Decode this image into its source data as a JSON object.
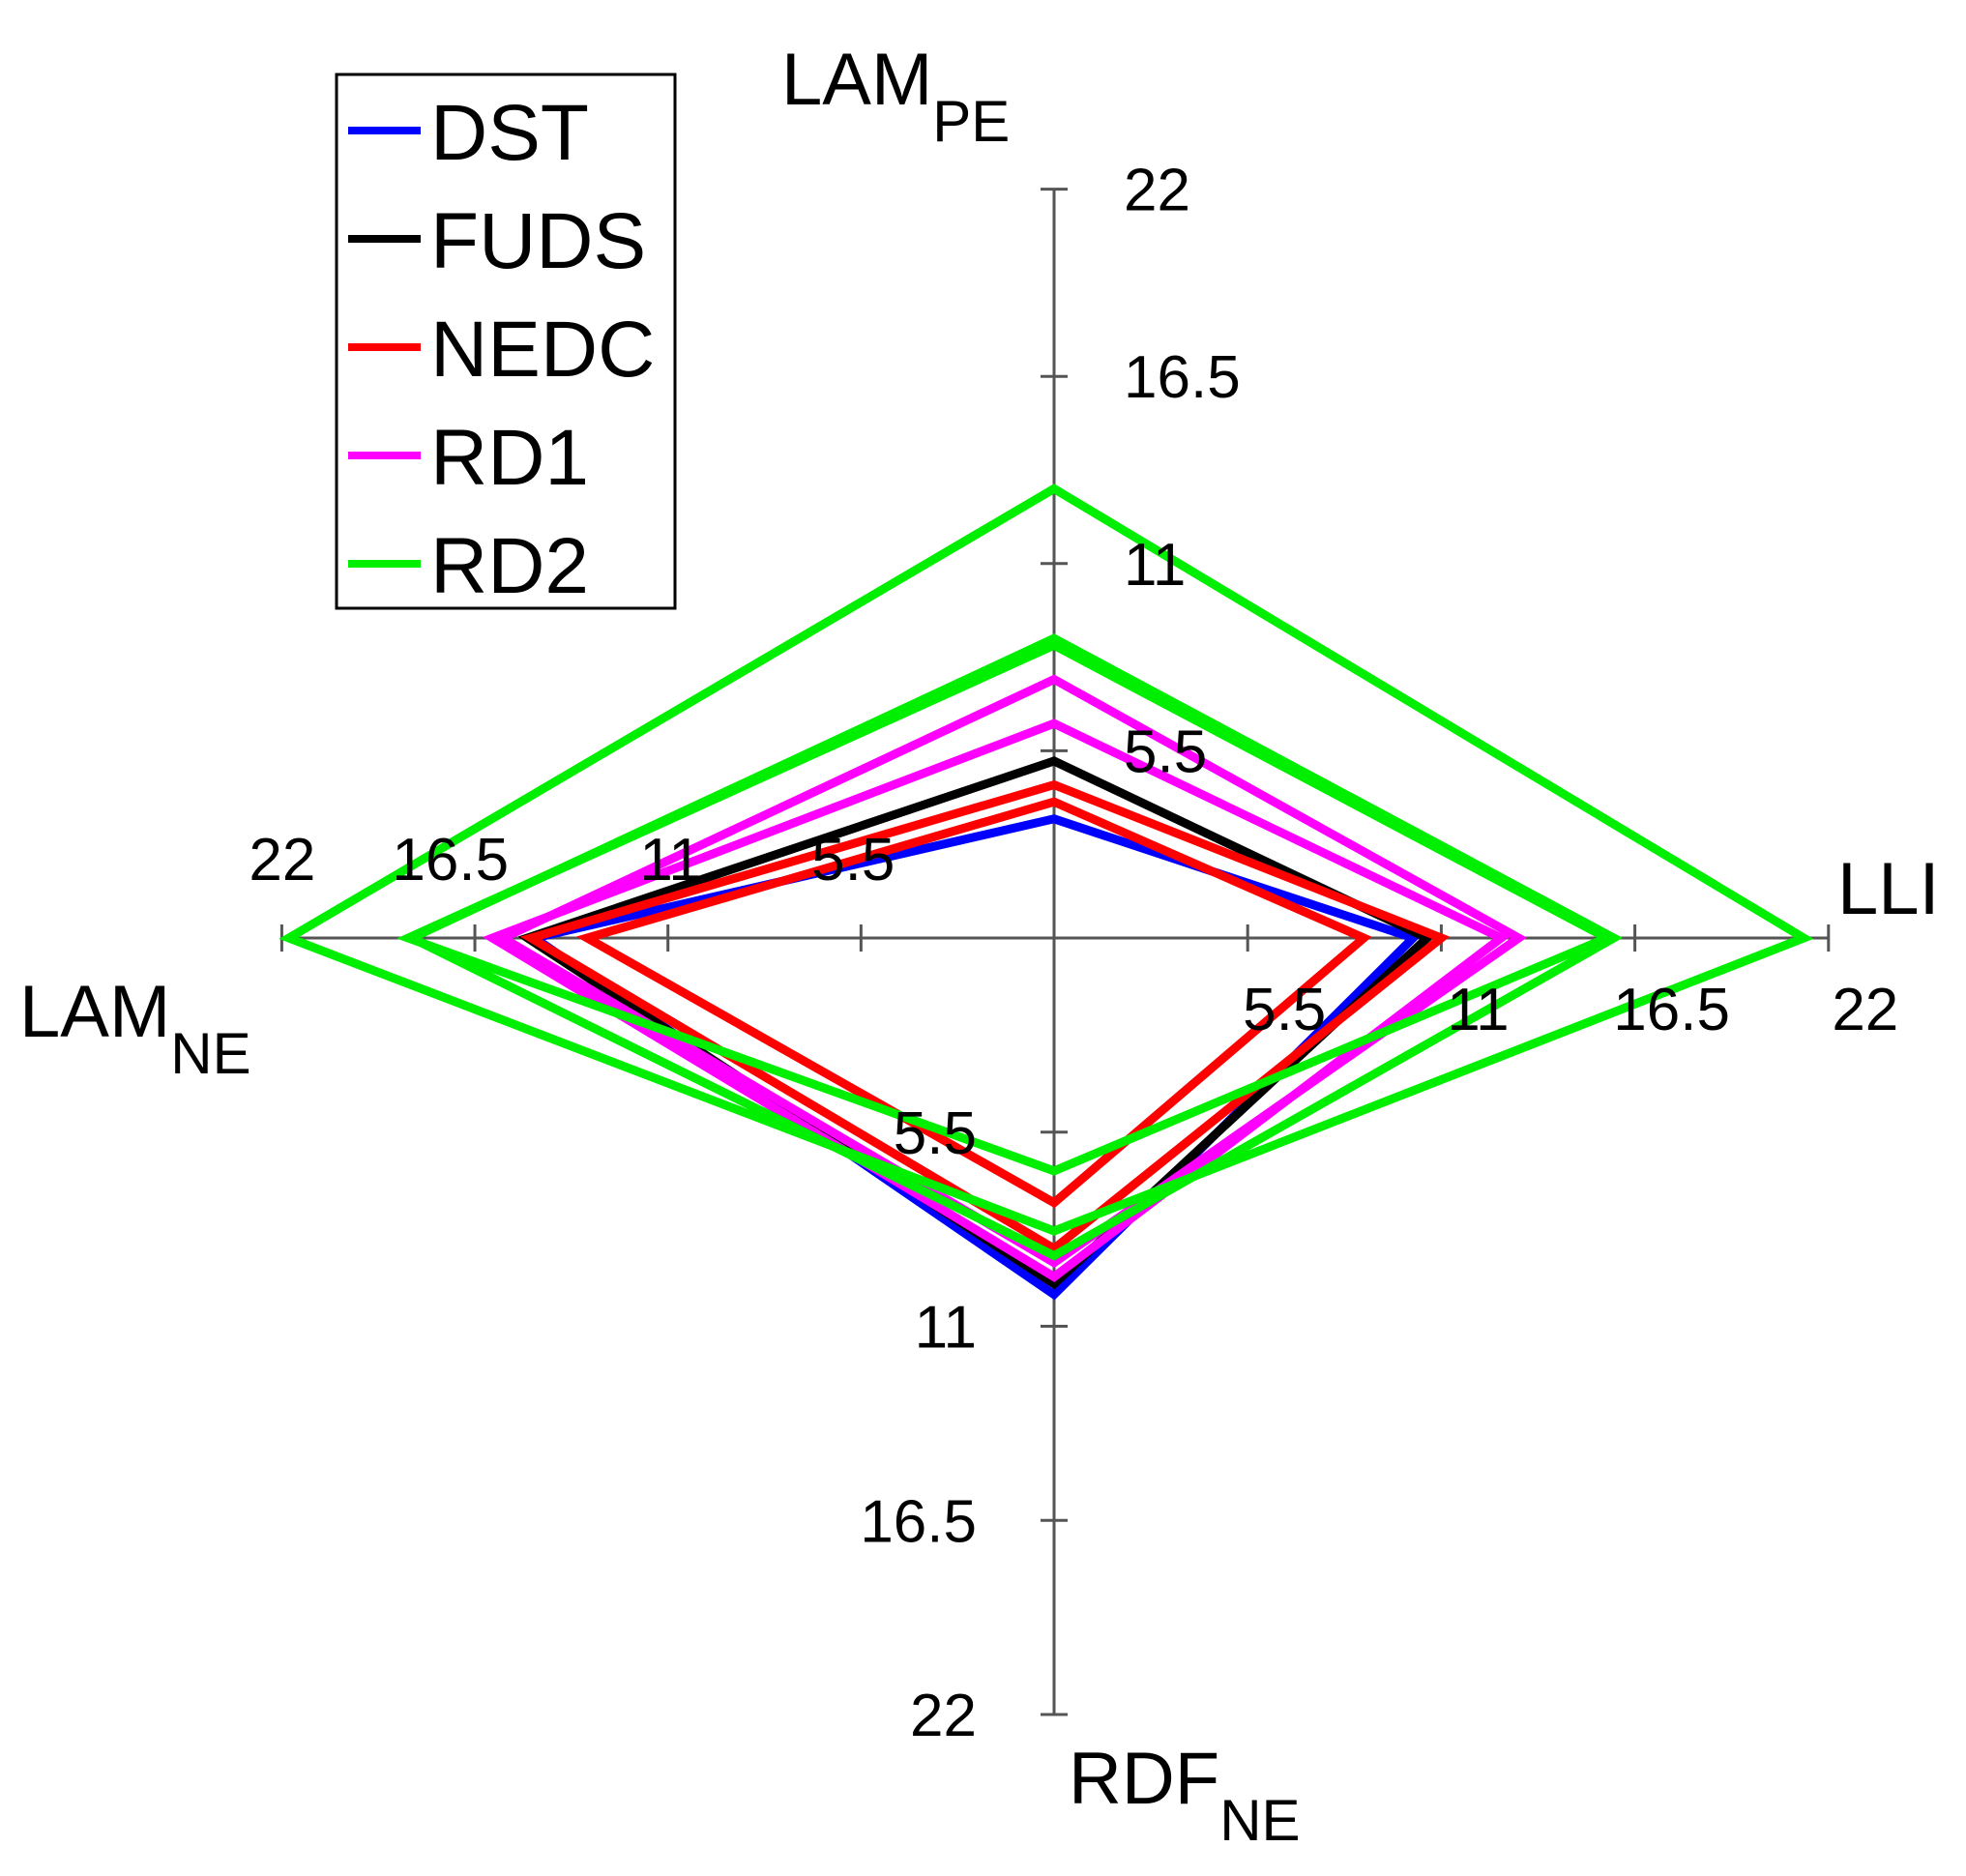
{
  "chart_data": {
    "type": "radar",
    "axes": [
      {
        "id": "lam_pe",
        "label": "LAM",
        "subscript": "PE",
        "direction": "up"
      },
      {
        "id": "lli",
        "label": "LLI",
        "subscript": "",
        "direction": "right"
      },
      {
        "id": "rdf_ne",
        "label": "RDF",
        "subscript": "NE",
        "direction": "down"
      },
      {
        "id": "lam_ne",
        "label": "LAM",
        "subscript": "NE",
        "direction": "left"
      }
    ],
    "range": [
      0,
      22
    ],
    "ticks": [
      5.5,
      11,
      16.5,
      22
    ],
    "tick_labels": {
      "lam_pe": [
        "5.5",
        "11",
        "16.5",
        "22"
      ],
      "lli": [
        "5.5",
        "11",
        "16.5",
        "22"
      ],
      "rdf_ne": [
        "5.5",
        "11",
        "16.5",
        "22"
      ],
      "lam_ne": [
        "5.5",
        "11",
        "16.5",
        "22"
      ]
    },
    "legend": {
      "position": "top-left"
    },
    "series": [
      {
        "name": "DST",
        "color": "#0000ff",
        "polygons": [
          {
            "lam_pe": 3.5,
            "lli": 10.2,
            "rdf_ne": 10.1,
            "lam_ne": 14.8
          }
        ]
      },
      {
        "name": "FUDS",
        "color": "#000000",
        "polygons": [
          {
            "lam_pe": 5.2,
            "lli": 10.6,
            "rdf_ne": 9.8,
            "lam_ne": 15.0
          }
        ]
      },
      {
        "name": "NEDC",
        "color": "#ff0000",
        "polygons": [
          {
            "lam_pe": 4.0,
            "lli": 8.8,
            "rdf_ne": 7.5,
            "lam_ne": 13.3
          },
          {
            "lam_pe": 4.5,
            "lli": 11.0,
            "rdf_ne": 8.8,
            "lam_ne": 14.9
          }
        ]
      },
      {
        "name": "RD1",
        "color": "#ff00ff",
        "polygons": [
          {
            "lam_pe": 6.3,
            "lli": 12.7,
            "rdf_ne": 9.6,
            "lam_ne": 16.0
          },
          {
            "lam_pe": 7.6,
            "lli": 13.2,
            "rdf_ne": 9.2,
            "lam_ne": 15.7
          }
        ]
      },
      {
        "name": "RD2",
        "color": "#00ee00",
        "polygons": [
          {
            "lam_pe": 13.2,
            "lli": 21.3,
            "rdf_ne": 8.3,
            "lam_ne": 21.8
          },
          {
            "lam_pe": 8.6,
            "lli": 15.7,
            "rdf_ne": 6.6,
            "lam_ne": 18.4
          },
          {
            "lam_pe": 8.8,
            "lli": 15.9,
            "rdf_ne": 9.0,
            "lam_ne": 18.3
          }
        ]
      }
    ]
  }
}
